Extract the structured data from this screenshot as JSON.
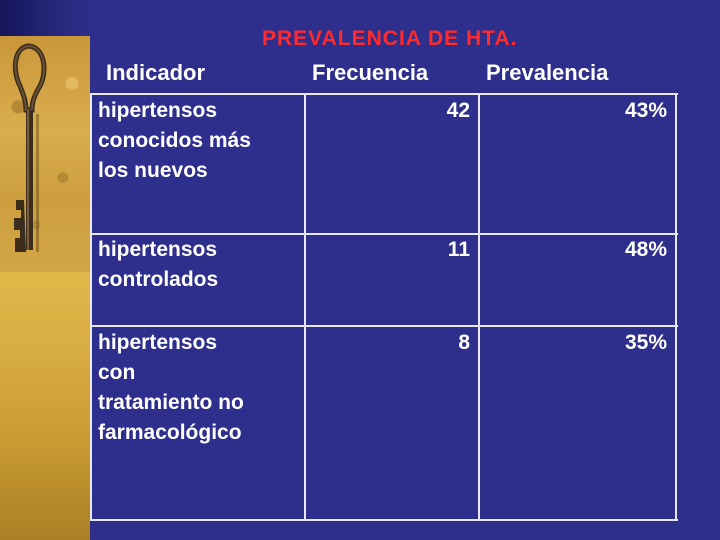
{
  "slide": {
    "title": "PREVALENCIA DE HTA.",
    "colors": {
      "background": "#2e2f8c",
      "title": "#ff2a2a",
      "text": "#ffffff",
      "gridline": "#e8e8f2"
    },
    "decoration": {
      "left_panel_icon": "key-icon"
    }
  },
  "table": {
    "headers": {
      "indicador": "Indicador",
      "frecuencia": "Frecuencia",
      "prevalencia": "Prevalencia"
    },
    "rows": [
      {
        "indicador_lines": [
          "hipertensos",
          "conocidos más",
          "los nuevos"
        ],
        "frecuencia": "42",
        "prevalencia": "43%"
      },
      {
        "indicador_lines": [
          "hipertensos",
          "controlados"
        ],
        "frecuencia": "11",
        "prevalencia": "48%"
      },
      {
        "indicador_lines": [
          "hipertensos",
          "con",
          "tratamiento no",
          "farmacológico"
        ],
        "frecuencia": "8",
        "prevalencia": "35%"
      }
    ]
  }
}
